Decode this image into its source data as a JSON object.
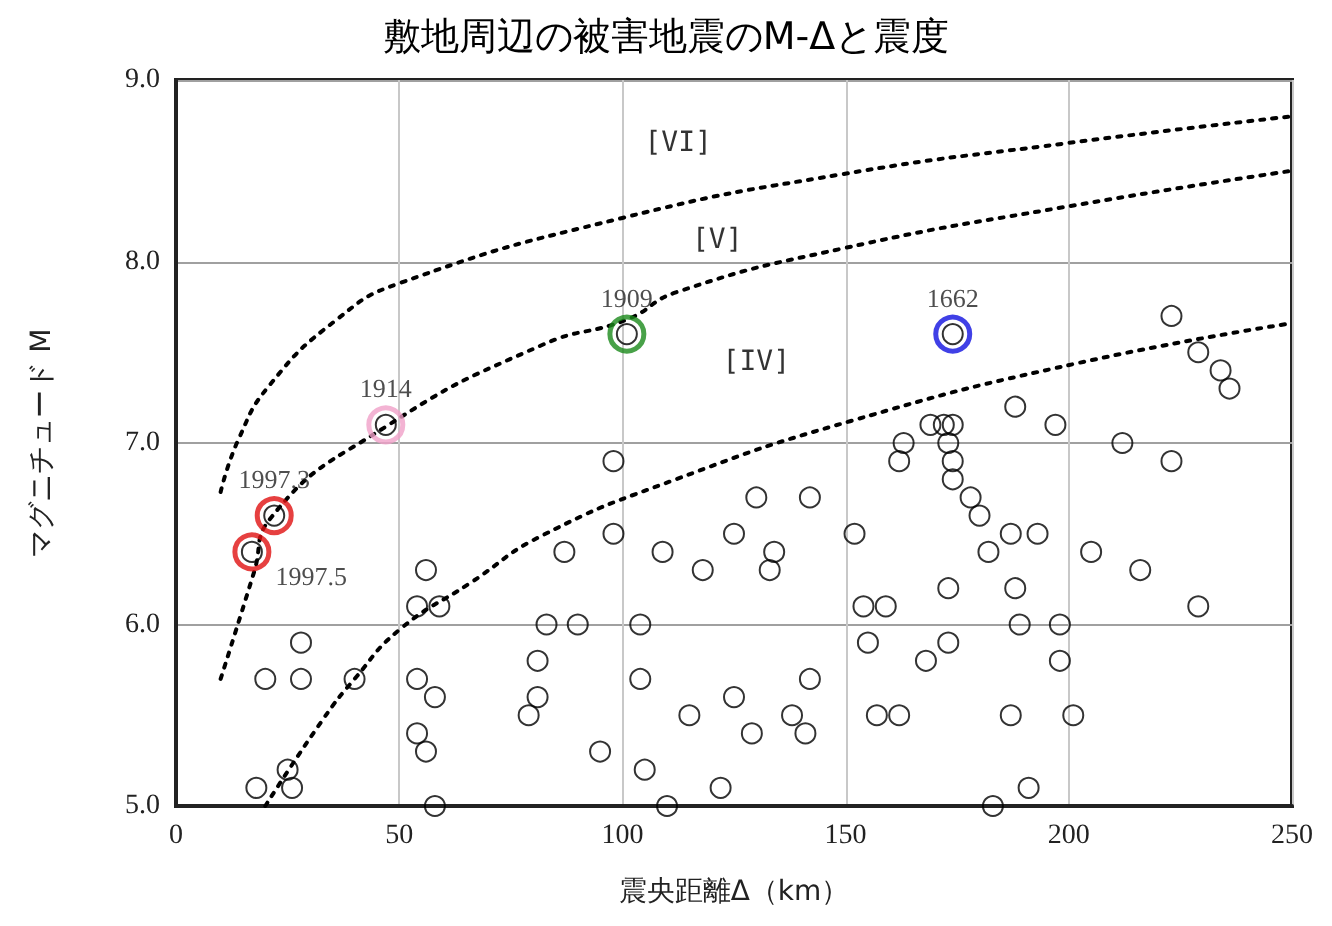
{
  "chart_data": {
    "type": "scatter",
    "title": "敷地周辺の被害地震のM-Δと震度",
    "xlabel": "震央距離Δ（km）",
    "ylabel": "マグニチュード M",
    "xlim": [
      0,
      250
    ],
    "xticks": [
      0,
      50,
      100,
      150,
      200,
      250
    ],
    "ylim": [
      5,
      9
    ],
    "yticks": [
      {
        "value": 5,
        "label": "5.0"
      },
      {
        "value": 6,
        "label": "6.0"
      },
      {
        "value": 7,
        "label": "7.0"
      },
      {
        "value": 8,
        "label": "8.0"
      },
      {
        "value": 9,
        "label": "9.0"
      }
    ],
    "grid": true,
    "marker": "circle",
    "series": [
      {
        "color": "#000000",
        "x": [
          56,
          54,
          59,
          28,
          20,
          28,
          40,
          54,
          58,
          54,
          56,
          25,
          18,
          26,
          58,
          83,
          81,
          81,
          79,
          98,
          130,
          142,
          98,
          87,
          109,
          125,
          118,
          134,
          133,
          152,
          90,
          104,
          104,
          95,
          105,
          110,
          115,
          125,
          129,
          138,
          141,
          142,
          122,
          154,
          159,
          155,
          157,
          162,
          163,
          162,
          223,
          229,
          234,
          236,
          188,
          197,
          169,
          172,
          174,
          173,
          174,
          174,
          178,
          180,
          187,
          193,
          182,
          205,
          212,
          223,
          216,
          229,
          173,
          188,
          189,
          198,
          173,
          168,
          198,
          187,
          201,
          191,
          183
        ],
        "values": [
          6.3,
          6.1,
          6.1,
          5.9,
          5.7,
          5.7,
          5.7,
          5.7,
          5.6,
          5.4,
          5.3,
          5.2,
          5.1,
          5.1,
          5.0,
          6.0,
          5.8,
          5.6,
          5.5,
          6.9,
          6.7,
          6.7,
          6.5,
          6.4,
          6.4,
          6.5,
          6.3,
          6.4,
          6.3,
          6.5,
          6.0,
          6.0,
          5.7,
          5.3,
          5.2,
          5.0,
          5.5,
          5.6,
          5.4,
          5.5,
          5.4,
          5.7,
          5.1,
          6.1,
          6.1,
          5.9,
          5.5,
          5.5,
          7.0,
          6.9,
          7.7,
          7.5,
          7.4,
          7.3,
          7.2,
          7.1,
          7.1,
          7.1,
          7.1,
          7.0,
          6.9,
          6.8,
          6.7,
          6.6,
          6.5,
          6.5,
          6.4,
          6.4,
          7.0,
          6.9,
          6.3,
          6.1,
          6.2,
          6.2,
          6.0,
          6.0,
          5.9,
          5.8,
          5.8,
          5.5,
          5.5,
          5.1,
          5.0
        ]
      },
      {
        "name": "1909",
        "color": "#1a8a1a",
        "x": [
          101
        ],
        "values": [
          7.6
        ]
      },
      {
        "name": "1914",
        "color": "#f0a0c8",
        "x": [
          47
        ],
        "values": [
          7.1
        ]
      },
      {
        "name": "1997.3",
        "color": "#e01010",
        "x": [
          22
        ],
        "values": [
          6.6
        ]
      },
      {
        "name": "1997.5",
        "color": "#e01010",
        "x": [
          17
        ],
        "values": [
          6.4
        ]
      },
      {
        "name": "1662",
        "color": "#1010e0",
        "x": [
          174
        ],
        "values": [
          7.6
        ]
      },
      {
        "type": "line",
        "line_style": "dotted",
        "marker": "none",
        "color": "#000000",
        "x": [
          10,
          14,
          21,
          36,
          50,
          100,
          149,
          199,
          250
        ],
        "values": [
          6.73,
          7.02,
          7.32,
          7.68,
          7.88,
          8.24,
          8.48,
          8.65,
          8.8
        ]
      },
      {
        "type": "line",
        "line_style": "dotted",
        "marker": "none",
        "color": "#000000",
        "x": [
          10,
          17.5,
          21,
          47,
          82,
          101,
          112,
          149,
          199,
          250
        ],
        "values": [
          5.7,
          6.29,
          6.58,
          7.09,
          7.54,
          7.68,
          7.83,
          8.07,
          8.3,
          8.5
        ]
      },
      {
        "type": "line",
        "line_style": "dotted",
        "marker": "none",
        "color": "#000000",
        "x": [
          20,
          33,
          40,
          50,
          66,
          82,
          112,
          151,
          202,
          250
        ],
        "values": [
          5.0,
          5.48,
          5.7,
          5.97,
          6.23,
          6.49,
          6.8,
          7.12,
          7.44,
          7.66
        ]
      }
    ],
    "annotations": [
      "[VI]",
      "[V]",
      "[IV]"
    ]
  }
}
